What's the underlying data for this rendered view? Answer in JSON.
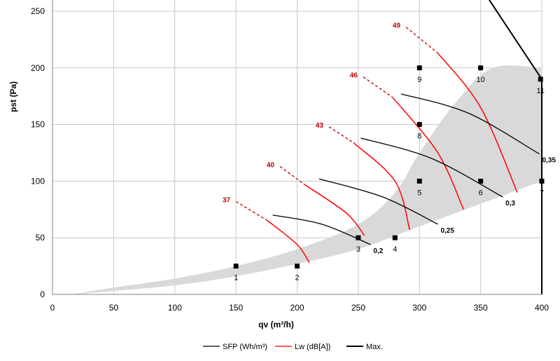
{
  "chart_data": {
    "type": "line",
    "xlabel": "qv (m³/h)",
    "ylabel": "pst (Pa)",
    "xlim": [
      0,
      400
    ],
    "ylim": [
      0,
      250
    ],
    "x_ticks": [
      "0",
      "50",
      "100",
      "150",
      "200",
      "250",
      "300",
      "350",
      "400"
    ],
    "y_ticks": [
      "0",
      "50",
      "100",
      "150",
      "200",
      "250"
    ],
    "grid": true,
    "legend_position": "bottom",
    "legend": [
      {
        "label": "SFP (Wh/m³)",
        "color": "#000000"
      },
      {
        "label": "Lw (dB[A])",
        "color": "#ff0000"
      },
      {
        "label": "Max.",
        "color": "#000000"
      }
    ],
    "operating_area_color": "#d9d9d9",
    "operating_area": {
      "upper": [
        [
          15,
          0
        ],
        [
          50,
          6
        ],
        [
          100,
          14
        ],
        [
          150,
          25
        ],
        [
          200,
          40
        ],
        [
          250,
          62
        ],
        [
          280,
          90
        ],
        [
          300,
          125
        ],
        [
          330,
          170
        ],
        [
          360,
          200
        ],
        [
          400,
          200
        ]
      ],
      "lower": [
        [
          400,
          100
        ],
        [
          350,
          80
        ],
        [
          300,
          60
        ],
        [
          250,
          40
        ],
        [
          200,
          27
        ],
        [
          150,
          16
        ],
        [
          100,
          8
        ],
        [
          50,
          3
        ],
        [
          15,
          0
        ]
      ]
    },
    "points": [
      {
        "label": "1",
        "x": 150,
        "y": 25
      },
      {
        "label": "2",
        "x": 200,
        "y": 25
      },
      {
        "label": "3",
        "x": 250,
        "y": 50
      },
      {
        "label": "4",
        "x": 280,
        "y": 50
      },
      {
        "label": "5",
        "x": 300,
        "y": 100
      },
      {
        "label": "6",
        "x": 350,
        "y": 100
      },
      {
        "label": "7",
        "x": 400,
        "y": 100
      },
      {
        "label": "8",
        "x": 300,
        "y": 150
      },
      {
        "label": "9",
        "x": 300,
        "y": 200
      },
      {
        "label": "10",
        "x": 350,
        "y": 200
      },
      {
        "label": "11",
        "x": 399,
        "y": 190
      }
    ],
    "sfp_curves": [
      {
        "label": "0,2",
        "values": [
          [
            180,
            70
          ],
          [
            220,
            62
          ],
          [
            260,
            44
          ]
        ]
      },
      {
        "label": "0,25",
        "values": [
          [
            218,
            102
          ],
          [
            270,
            86
          ],
          [
            315,
            62
          ]
        ]
      },
      {
        "label": "0,3",
        "values": [
          [
            252,
            138
          ],
          [
            310,
            120
          ],
          [
            368,
            86
          ]
        ]
      },
      {
        "label": "0,35",
        "values": [
          [
            285,
            177
          ],
          [
            340,
            160
          ],
          [
            398,
            124
          ]
        ]
      }
    ],
    "lw_curves": [
      {
        "label": "37",
        "dashed": [
          [
            150,
            82
          ],
          [
            176,
            65
          ]
        ],
        "solid": [
          [
            176,
            65
          ],
          [
            200,
            44
          ],
          [
            210,
            28
          ]
        ]
      },
      {
        "label": "40",
        "dashed": [
          [
            186,
            113
          ],
          [
            206,
            97
          ]
        ],
        "solid": [
          [
            206,
            97
          ],
          [
            240,
            72
          ],
          [
            255,
            52
          ]
        ]
      },
      {
        "label": "43",
        "dashed": [
          [
            226,
            148
          ],
          [
            246,
            134
          ]
        ],
        "solid": [
          [
            246,
            134
          ],
          [
            280,
            100
          ],
          [
            292,
            57
          ]
        ]
      },
      {
        "label": "46",
        "dashed": [
          [
            254,
            192
          ],
          [
            278,
            174
          ]
        ],
        "solid": [
          [
            278,
            174
          ],
          [
            315,
            125
          ],
          [
            336,
            75
          ]
        ]
      },
      {
        "label": "49",
        "dashed": [
          [
            289,
            236
          ],
          [
            315,
            213
          ]
        ],
        "solid": [
          [
            315,
            213
          ],
          [
            350,
            165
          ],
          [
            380,
            90
          ]
        ]
      }
    ],
    "max_curve": {
      "label": "Max.",
      "values": [
        [
          357,
          260
        ],
        [
          400,
          190
        ],
        [
          400,
          0
        ]
      ]
    }
  }
}
